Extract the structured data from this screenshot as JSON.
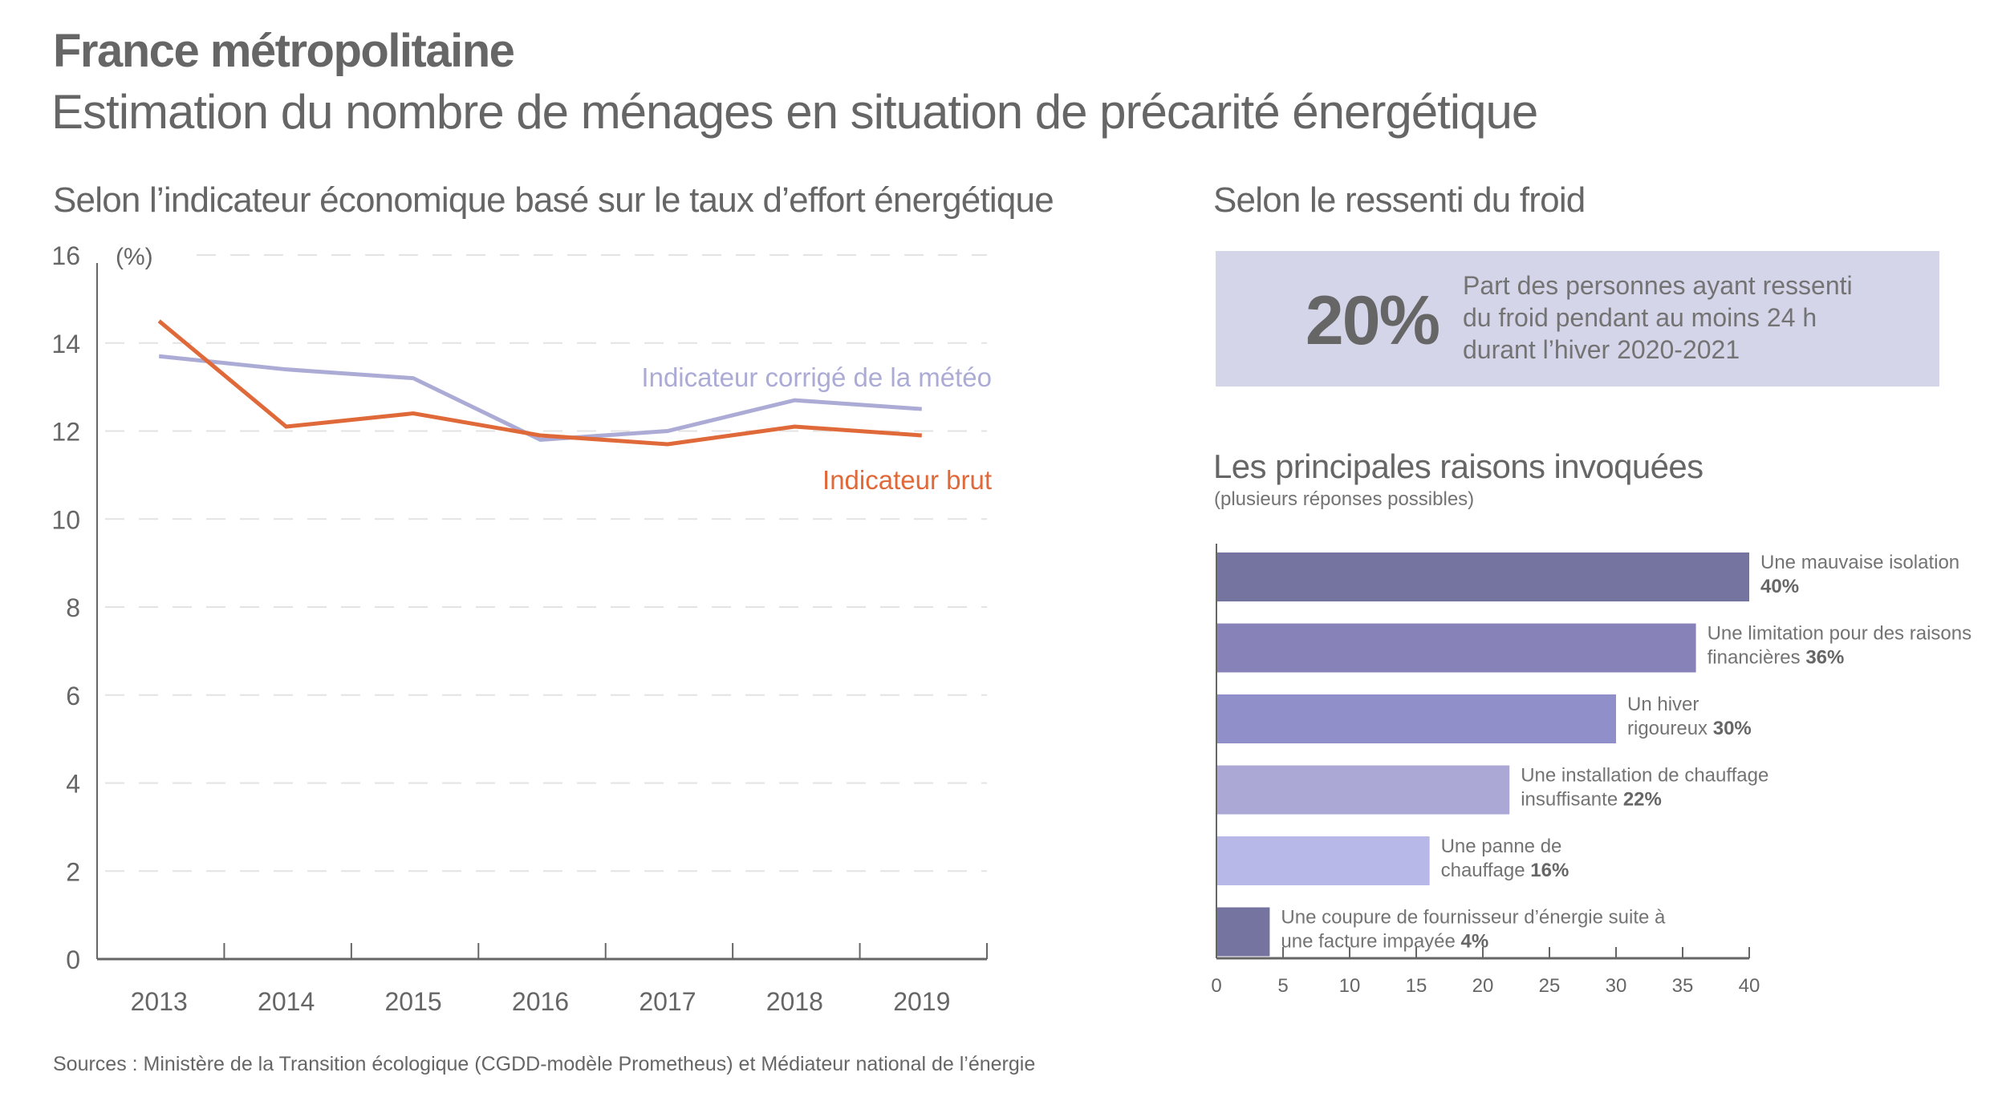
{
  "header": {
    "title": "France métropolitaine",
    "subtitle": "Estimation du nombre de ménages en situation de précarité énergétique"
  },
  "left_section": {
    "title": "Selon l’indicateur économique basé sur le taux d’effort énergétique"
  },
  "right_section": {
    "title": "Selon le ressenti du froid",
    "kpi": {
      "value": "20%",
      "text_lines": [
        "Part des personnes ayant ressenti",
        "du froid pendant au moins 24 h",
        "durant l’hiver 2020-2021"
      ]
    },
    "bar_title": "Les principales raisons invoquées",
    "bar_subtitle": "(plusieurs réponses possibles)"
  },
  "source": "Sources : Ministère de la Transition écologique (CGDD-modèle Prometheus) et Médiateur national de l’énergie",
  "chart_data": [
    {
      "type": "line",
      "title": "Selon l’indicateur économique basé sur le taux d’effort énergétique",
      "xlabel": "",
      "ylabel": "(%)",
      "x": [
        "2013",
        "2014",
        "2015",
        "2016",
        "2017",
        "2018",
        "2019"
      ],
      "ylim": [
        0,
        16
      ],
      "yticks": [
        0,
        2,
        4,
        6,
        8,
        10,
        12,
        14,
        16
      ],
      "grid": true,
      "legend": "inline-right",
      "series": [
        {
          "name": "Indicateur corrigé de la météo",
          "color": "#ababd6",
          "values": [
            13.7,
            13.4,
            13.2,
            11.8,
            12.0,
            12.7,
            12.5
          ]
        },
        {
          "name": "Indicateur brut",
          "color": "#e0693a",
          "values": [
            14.5,
            12.1,
            12.4,
            11.9,
            11.7,
            12.1,
            11.9
          ]
        }
      ]
    },
    {
      "type": "bar",
      "orientation": "horizontal",
      "title": "Les principales raisons invoquées",
      "subtitle": "(plusieurs réponses possibles)",
      "xlim": [
        0,
        40
      ],
      "xticks": [
        0,
        5,
        10,
        15,
        20,
        25,
        30,
        35,
        40
      ],
      "categories": [
        {
          "lines": [
            "Une mauvaise isolation",
            ""
          ],
          "value_label": "40%"
        },
        {
          "lines": [
            "Une limitation pour des raisons",
            "financières "
          ],
          "value_label": "36%"
        },
        {
          "lines": [
            "Un hiver",
            "rigoureux "
          ],
          "value_label": "30%"
        },
        {
          "lines": [
            "Une installation de chauffage",
            "insuffisante  "
          ],
          "value_label": "22%"
        },
        {
          "lines": [
            "Une panne de",
            "chauffage "
          ],
          "value_label": "16%"
        },
        {
          "lines": [
            "Une coupure de fournisseur d’énergie suite à",
            "une facture impayée "
          ],
          "value_label": "4%"
        }
      ],
      "values": [
        40,
        36,
        30,
        22,
        16,
        4
      ],
      "colors": [
        "#7574a0",
        "#8782b8",
        "#918fc9",
        "#aca8d6",
        "#b8b8e8",
        "#7574a0"
      ]
    }
  ]
}
